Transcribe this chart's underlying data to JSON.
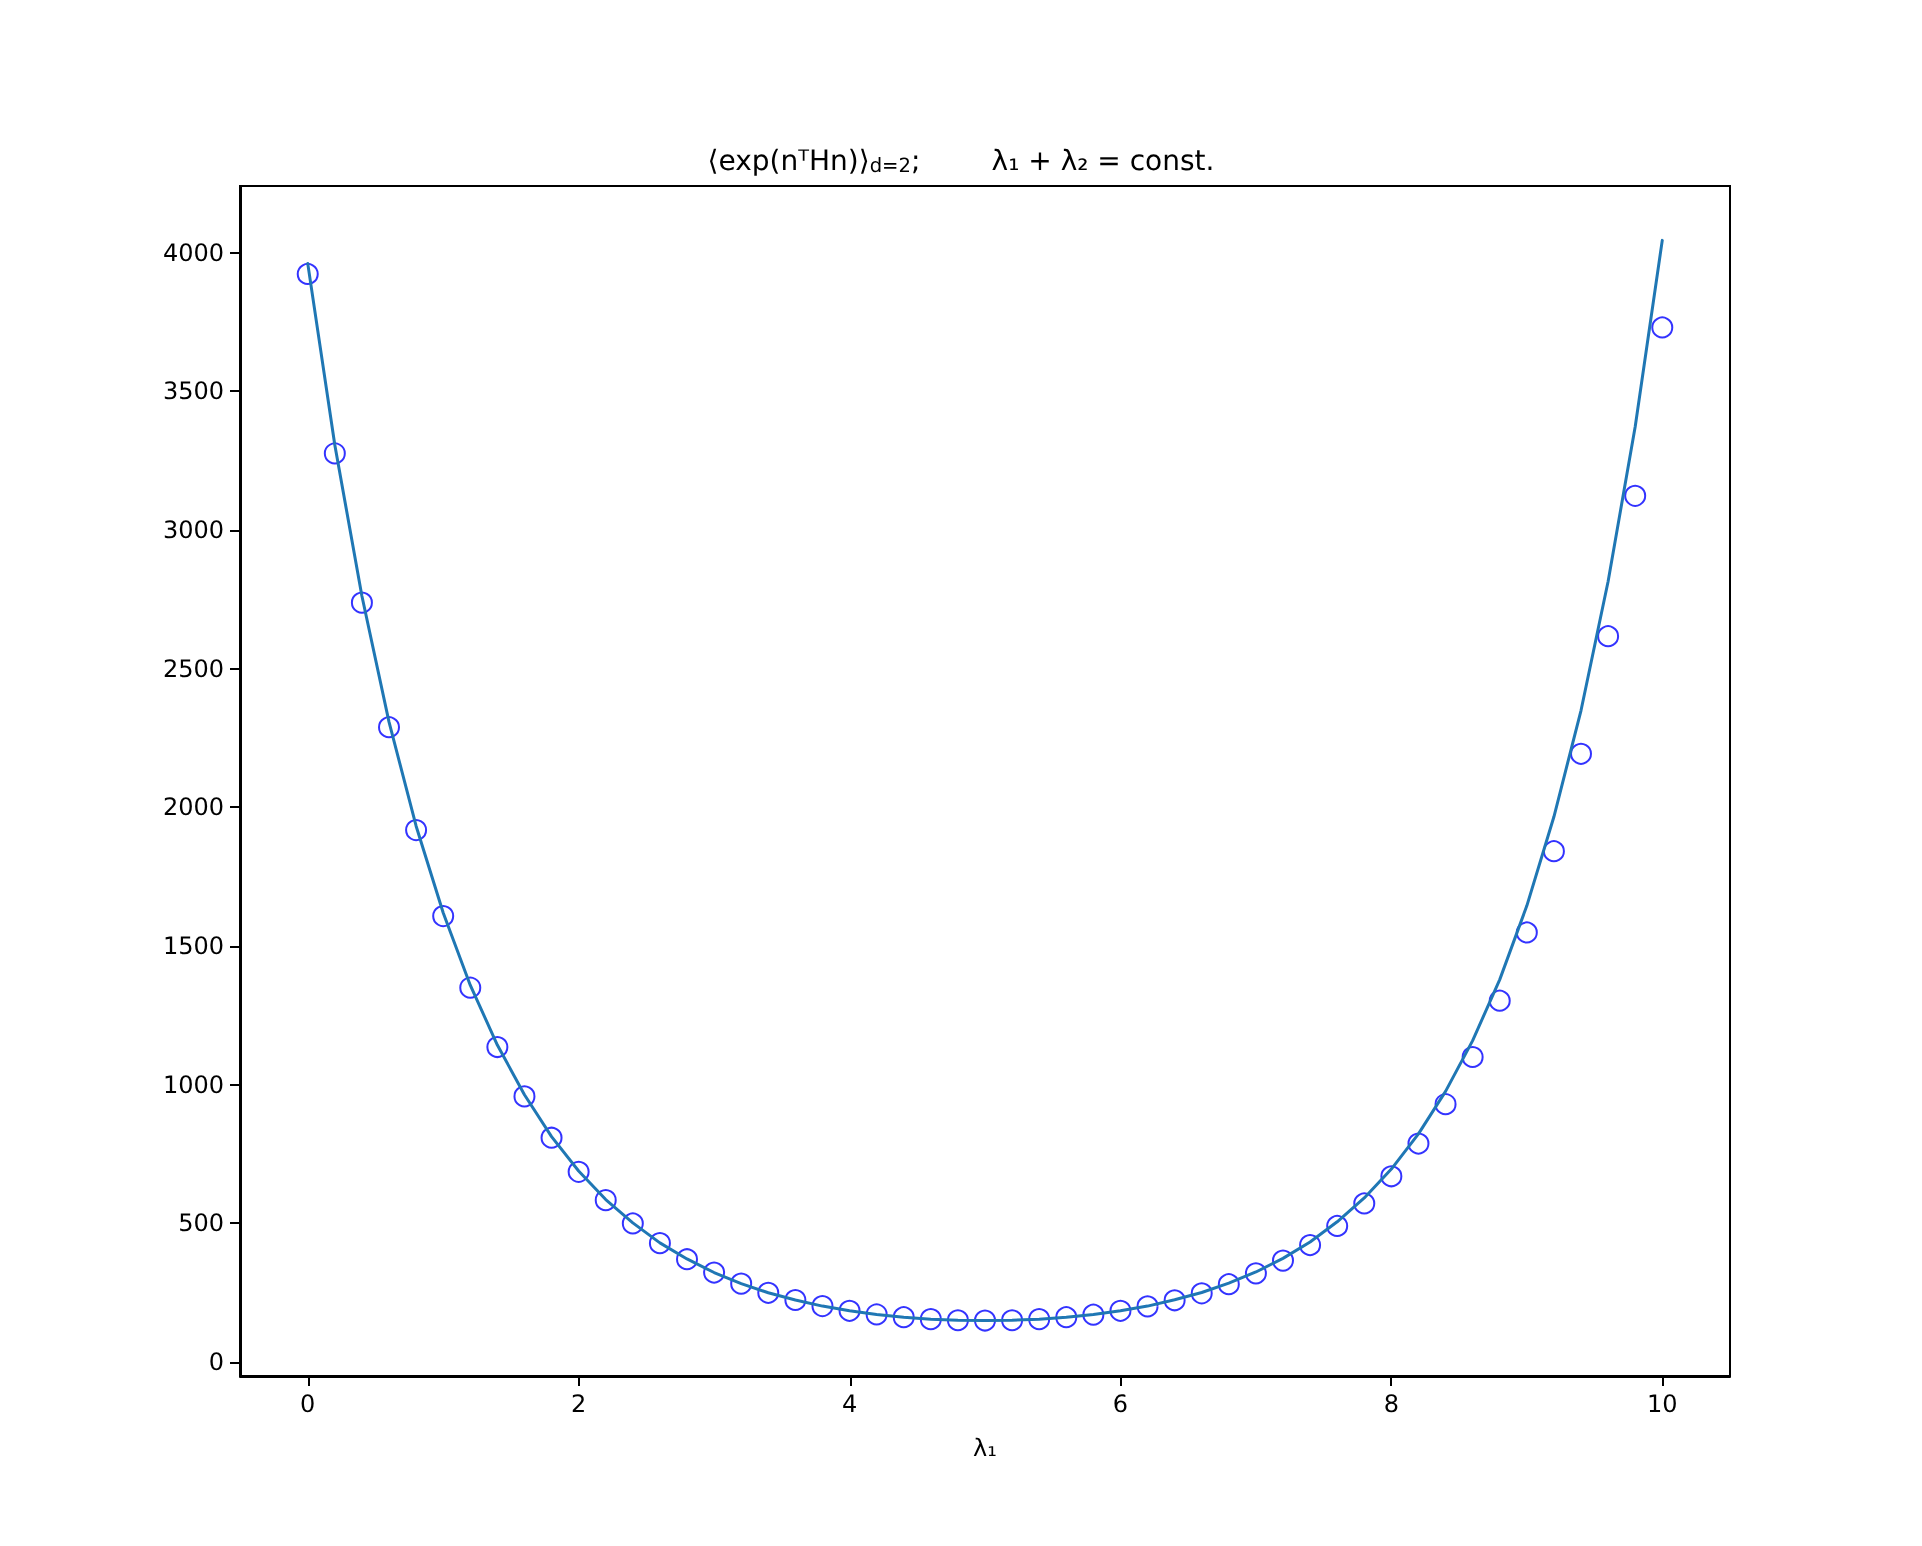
{
  "chart_data": {
    "type": "line",
    "title": "⟨exp(nᵀHn)⟩$_{d=2}$;        λ₁ + λ₂ = const.",
    "xlabel": "λ₁",
    "xlim": [
      -0.5,
      10.5
    ],
    "xticks": [
      0,
      2,
      4,
      6,
      8,
      10
    ],
    "ylim": [
      -50,
      4240
    ],
    "yticks": [
      0,
      500,
      1000,
      1500,
      2000,
      2500,
      3000,
      3500,
      4000
    ],
    "grid": false,
    "series": [
      {
        "type": "scatter",
        "marker": "circle",
        "color": "#0000ff",
        "x": [
          0,
          0.2,
          0.4,
          0.6,
          0.8,
          1,
          1.2,
          1.4,
          1.6,
          1.8,
          2,
          2.2,
          2.4,
          2.6,
          2.8,
          3,
          3.2,
          3.4,
          3.6,
          3.8,
          4,
          4.2,
          4.4,
          4.6,
          4.8,
          5,
          5.2,
          5.4,
          5.6,
          5.8,
          6,
          6.2,
          6.4,
          6.6,
          6.8,
          7,
          7.2,
          7.4,
          7.6,
          7.8,
          8,
          8.2,
          8.4,
          8.6,
          8.8,
          9,
          9.2,
          9.4,
          9.6,
          9.8,
          10
        ],
        "values": [
          3923,
          3276,
          2738,
          2289,
          1918,
          1608,
          1350,
          1136,
          958,
          809,
          686,
          584,
          500,
          429,
          371,
          323,
          283,
          250,
          224,
          202,
          185,
          172,
          162,
          155,
          151,
          150,
          151,
          155,
          162,
          171,
          185,
          201,
          223,
          248,
          281,
          320,
          366,
          422,
          491,
          572,
          670,
          788,
          930,
          1100,
          1303,
          1549,
          1842,
          2193,
          2617,
          3123,
          3730
        ]
      },
      {
        "marker": "none",
        "color": "#1f77b4",
        "x": [
          0,
          0.2,
          0.4,
          0.6,
          0.8,
          1,
          1.2,
          1.4,
          1.6,
          1.8,
          2,
          2.2,
          2.4,
          2.6,
          2.8,
          3,
          3.2,
          3.4,
          3.6,
          3.8,
          4,
          4.2,
          4.4,
          4.6,
          4.8,
          5,
          5.2,
          5.4,
          5.6,
          5.8,
          6,
          6.2,
          6.4,
          6.6,
          6.8,
          7,
          7.2,
          7.4,
          7.6,
          7.8,
          8,
          8.2,
          8.4,
          8.6,
          8.8,
          9,
          9.2,
          9.4,
          9.6,
          9.8,
          10
        ],
        "values": [
          3961,
          3306,
          2762,
          2308,
          1933,
          1620,
          1359,
          1143,
          964,
          813,
          689,
          586,
          502,
          430,
          372,
          323,
          283,
          250,
          224,
          202,
          185,
          172,
          162,
          155,
          151,
          150,
          151,
          155,
          162,
          172,
          185,
          202,
          225,
          251,
          285,
          325,
          374,
          433,
          506,
          592,
          696,
          823,
          976,
          1159,
          1379,
          1645,
          1966,
          2349,
          2814,
          3372,
          4044
        ]
      }
    ]
  }
}
